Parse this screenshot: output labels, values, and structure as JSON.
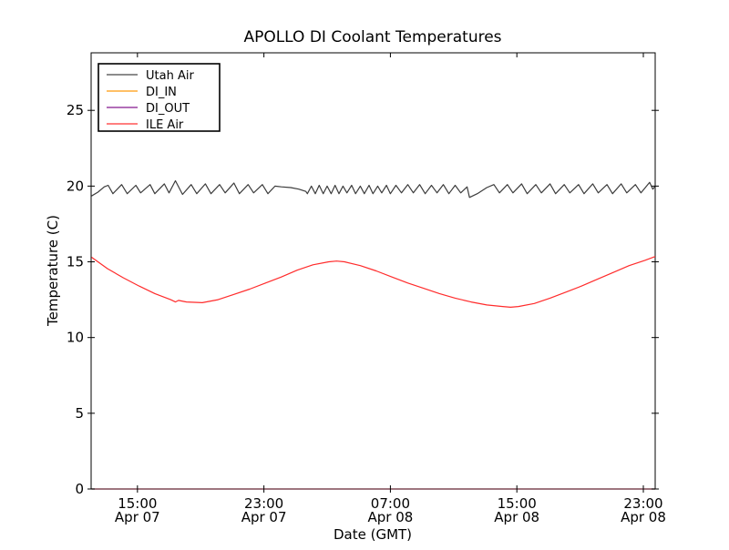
{
  "chart_data": {
    "type": "line",
    "title": "APOLLO DI Coolant Temperatures",
    "xlabel": "Date (GMT)",
    "ylabel": "Temperature (C)",
    "x_unit": "hours since Apr 07 00:00 GMT",
    "xlim": [
      12.07,
      47.75
    ],
    "ylim": [
      0,
      28.8
    ],
    "grid": false,
    "background": "#ffffff",
    "x_ticks": [
      {
        "value": 15,
        "line1": "15:00",
        "line2": "Apr 07"
      },
      {
        "value": 23,
        "line1": "23:00",
        "line2": "Apr 07"
      },
      {
        "value": 31,
        "line1": "07:00",
        "line2": "Apr 08"
      },
      {
        "value": 39,
        "line1": "15:00",
        "line2": "Apr 08"
      },
      {
        "value": 47,
        "line1": "23:00",
        "line2": "Apr 08"
      }
    ],
    "y_ticks": [
      {
        "value": 0,
        "label": "0"
      },
      {
        "value": 5,
        "label": "5"
      },
      {
        "value": 10,
        "label": "10"
      },
      {
        "value": 15,
        "label": "15"
      },
      {
        "value": 20,
        "label": "20"
      },
      {
        "value": 25,
        "label": "25"
      }
    ],
    "legend": {
      "position": "upper left",
      "border_color": "#000000",
      "background": "#ffffff"
    },
    "series": [
      {
        "name": "Utah Air",
        "color": "#666666",
        "line_color": "#3c3c3c",
        "points": [
          [
            12.1,
            19.35
          ],
          [
            12.5,
            19.6
          ],
          [
            12.9,
            19.95
          ],
          [
            13.15,
            20.05
          ],
          [
            13.45,
            19.5
          ],
          [
            14.0,
            20.1
          ],
          [
            14.35,
            19.5
          ],
          [
            14.9,
            20.05
          ],
          [
            15.2,
            19.55
          ],
          [
            15.8,
            20.1
          ],
          [
            16.1,
            19.5
          ],
          [
            16.7,
            20.15
          ],
          [
            17.0,
            19.55
          ],
          [
            17.4,
            20.35
          ],
          [
            17.85,
            19.45
          ],
          [
            18.4,
            20.1
          ],
          [
            18.75,
            19.5
          ],
          [
            19.3,
            20.15
          ],
          [
            19.65,
            19.5
          ],
          [
            20.2,
            20.1
          ],
          [
            20.55,
            19.55
          ],
          [
            21.1,
            20.2
          ],
          [
            21.45,
            19.5
          ],
          [
            22.0,
            20.1
          ],
          [
            22.35,
            19.55
          ],
          [
            22.9,
            20.1
          ],
          [
            23.25,
            19.5
          ],
          [
            23.7,
            20.0
          ],
          [
            24.1,
            19.95
          ],
          [
            24.7,
            19.9
          ],
          [
            25.2,
            19.8
          ],
          [
            25.65,
            19.65
          ],
          [
            25.75,
            19.5
          ],
          [
            26.0,
            20.0
          ],
          [
            26.25,
            19.5
          ],
          [
            26.5,
            20.05
          ],
          [
            26.75,
            19.5
          ],
          [
            27.0,
            20.0
          ],
          [
            27.25,
            19.5
          ],
          [
            27.5,
            20.05
          ],
          [
            27.75,
            19.5
          ],
          [
            28.0,
            20.0
          ],
          [
            28.25,
            19.55
          ],
          [
            28.55,
            20.05
          ],
          [
            28.8,
            19.5
          ],
          [
            29.1,
            20.0
          ],
          [
            29.35,
            19.5
          ],
          [
            29.65,
            20.05
          ],
          [
            29.9,
            19.5
          ],
          [
            30.2,
            20.0
          ],
          [
            30.45,
            19.55
          ],
          [
            30.75,
            20.05
          ],
          [
            31.0,
            19.5
          ],
          [
            31.35,
            20.05
          ],
          [
            31.7,
            19.55
          ],
          [
            32.1,
            20.1
          ],
          [
            32.45,
            19.55
          ],
          [
            32.85,
            20.1
          ],
          [
            33.2,
            19.5
          ],
          [
            33.6,
            20.05
          ],
          [
            33.95,
            19.55
          ],
          [
            34.35,
            20.1
          ],
          [
            34.7,
            19.5
          ],
          [
            35.1,
            20.05
          ],
          [
            35.45,
            19.55
          ],
          [
            35.85,
            19.95
          ],
          [
            36.0,
            19.25
          ],
          [
            36.5,
            19.5
          ],
          [
            37.1,
            19.9
          ],
          [
            37.55,
            20.1
          ],
          [
            37.9,
            19.55
          ],
          [
            38.4,
            20.1
          ],
          [
            38.75,
            19.55
          ],
          [
            39.3,
            20.15
          ],
          [
            39.65,
            19.5
          ],
          [
            40.2,
            20.1
          ],
          [
            40.55,
            19.55
          ],
          [
            41.1,
            20.15
          ],
          [
            41.45,
            19.5
          ],
          [
            42.0,
            20.1
          ],
          [
            42.35,
            19.55
          ],
          [
            42.9,
            20.1
          ],
          [
            43.25,
            19.5
          ],
          [
            43.8,
            20.15
          ],
          [
            44.15,
            19.55
          ],
          [
            44.7,
            20.1
          ],
          [
            45.05,
            19.5
          ],
          [
            45.6,
            20.15
          ],
          [
            45.95,
            19.55
          ],
          [
            46.5,
            20.1
          ],
          [
            46.85,
            19.55
          ],
          [
            47.4,
            20.25
          ],
          [
            47.6,
            19.8
          ],
          [
            47.75,
            20.0
          ]
        ]
      },
      {
        "name": "DI_IN",
        "color": "#ffac33",
        "line_color": "#7a424e",
        "points": [
          [
            12.1,
            0
          ],
          [
            47.75,
            0
          ]
        ]
      },
      {
        "name": "DI_OUT",
        "color": "#993fa0",
        "line_color": "#7a424e",
        "points": [
          [
            12.1,
            0
          ],
          [
            47.75,
            0
          ]
        ]
      },
      {
        "name": "ILE Air",
        "color": "#ff5555",
        "line_color": "#ff2b2b",
        "points": [
          [
            12.1,
            15.3
          ],
          [
            13.1,
            14.55
          ],
          [
            14.1,
            13.95
          ],
          [
            15.1,
            13.4
          ],
          [
            16.1,
            12.9
          ],
          [
            17.1,
            12.5
          ],
          [
            17.4,
            12.35
          ],
          [
            17.6,
            12.45
          ],
          [
            18.1,
            12.35
          ],
          [
            19.1,
            12.3
          ],
          [
            20.1,
            12.5
          ],
          [
            21.1,
            12.85
          ],
          [
            22.1,
            13.2
          ],
          [
            23.1,
            13.6
          ],
          [
            24.1,
            14.0
          ],
          [
            25.1,
            14.45
          ],
          [
            26.1,
            14.8
          ],
          [
            27.1,
            15.0
          ],
          [
            27.6,
            15.05
          ],
          [
            28.1,
            15.0
          ],
          [
            29.1,
            14.75
          ],
          [
            30.1,
            14.4
          ],
          [
            31.1,
            14.0
          ],
          [
            32.1,
            13.6
          ],
          [
            33.1,
            13.25
          ],
          [
            34.1,
            12.9
          ],
          [
            35.1,
            12.6
          ],
          [
            36.1,
            12.35
          ],
          [
            37.1,
            12.15
          ],
          [
            38.1,
            12.05
          ],
          [
            38.6,
            12.0
          ],
          [
            39.1,
            12.05
          ],
          [
            40.1,
            12.25
          ],
          [
            41.1,
            12.6
          ],
          [
            42.1,
            13.0
          ],
          [
            43.1,
            13.4
          ],
          [
            44.1,
            13.85
          ],
          [
            45.1,
            14.3
          ],
          [
            46.1,
            14.75
          ],
          [
            47.1,
            15.1
          ],
          [
            47.75,
            15.35
          ]
        ]
      }
    ]
  }
}
